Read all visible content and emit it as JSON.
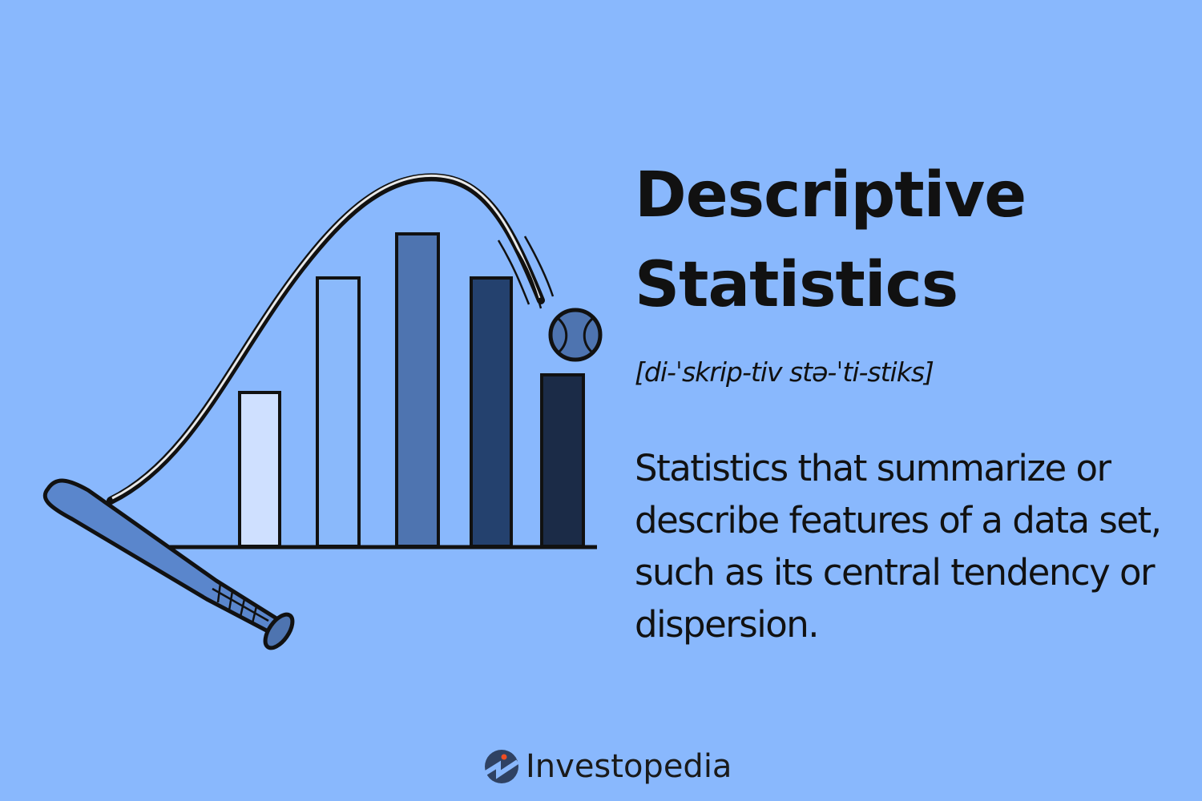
{
  "title_line1": "Descriptive",
  "title_line2": "Statistics",
  "pronunciation": "[di-ˈskrip-tiv stə-ˈti-stiks]",
  "definition": "Statistics that summarize or describe features of a data set, such as its central tendency or dispersion.",
  "brand": "Investopedia",
  "colors": {
    "background": "#89b8fd",
    "bar_1": "#cfe0ff",
    "bar_2": "#8ab9fb",
    "bar_3": "#4e74b0",
    "bar_4": "#24416e",
    "bar_5": "#1b2b47",
    "logo_circle": "#2f4263",
    "logo_dot": "#f04e23"
  },
  "icons": [
    "bar-chart-illustration",
    "baseball-bat-icon",
    "baseball-icon",
    "investopedia-logo-icon"
  ]
}
